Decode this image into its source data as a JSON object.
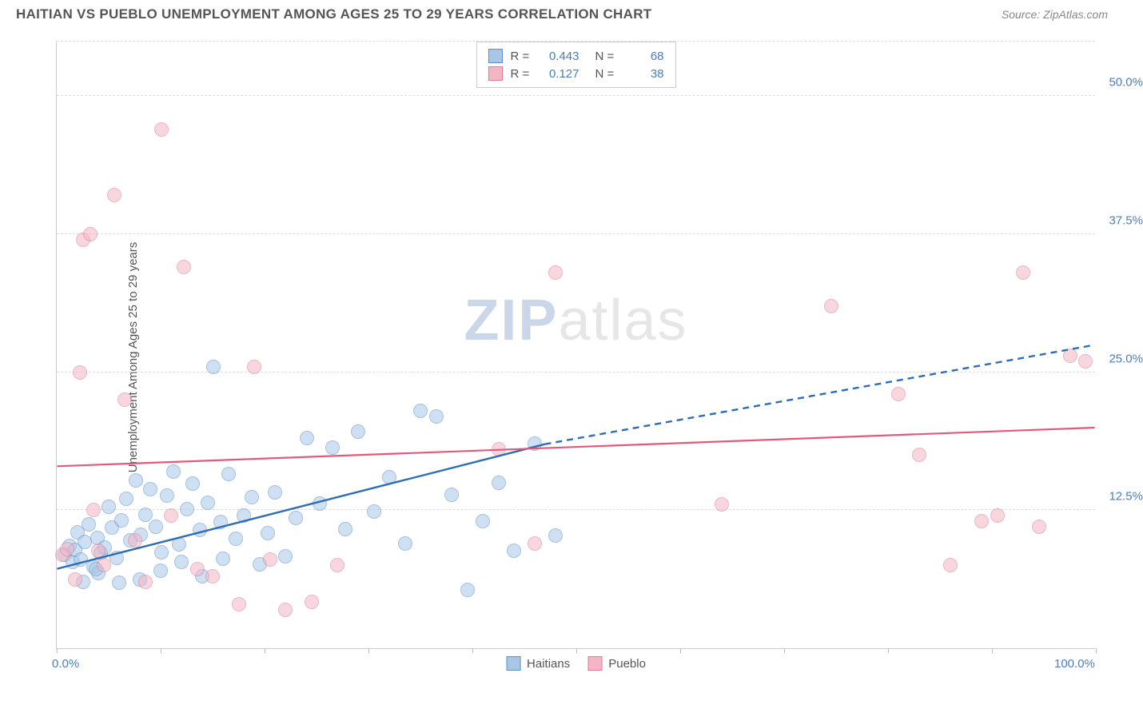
{
  "header": {
    "title": "HAITIAN VS PUEBLO UNEMPLOYMENT AMONG AGES 25 TO 29 YEARS CORRELATION CHART",
    "source": "Source: ZipAtlas.com"
  },
  "chart": {
    "type": "scatter",
    "ylabel": "Unemployment Among Ages 25 to 29 years",
    "watermark_a": "ZIP",
    "watermark_b": "atlas",
    "background_color": "#ffffff",
    "grid_color": "#dddddd",
    "axis_color": "#cccccc",
    "tick_label_color": "#4a7ebb",
    "xlim": [
      0,
      100
    ],
    "ylim": [
      0,
      55
    ],
    "x_ticks": [
      0,
      10,
      20,
      30,
      40,
      50,
      60,
      70,
      80,
      90,
      100
    ],
    "x_tick_labels": {
      "0": "0.0%",
      "100": "100.0%"
    },
    "y_gridlines": [
      12.5,
      25,
      37.5,
      50
    ],
    "y_tick_labels": {
      "12.5": "12.5%",
      "25": "25.0%",
      "37.5": "37.5%",
      "50": "50.0%"
    },
    "marker_radius": 9,
    "marker_opacity": 0.55,
    "series": [
      {
        "name": "Haitians",
        "color_fill": "#a8c7e8",
        "color_stroke": "#5a8fc7",
        "R": "0.443",
        "N": "68",
        "trend": {
          "color": "#2e6cb3",
          "width": 2.4,
          "x1": 0,
          "y1": 7.2,
          "x2": 47,
          "y2": 18.5,
          "x3": 100,
          "y3": 27.5,
          "dash_after": 47
        },
        "points": [
          [
            0.8,
            8.5
          ],
          [
            1.2,
            9.3
          ],
          [
            1.5,
            7.8
          ],
          [
            1.8,
            8.9
          ],
          [
            2.0,
            10.5
          ],
          [
            2.3,
            8.0
          ],
          [
            2.7,
            9.6
          ],
          [
            3.1,
            11.2
          ],
          [
            3.5,
            7.4
          ],
          [
            3.9,
            10.0
          ],
          [
            4.2,
            8.6
          ],
          [
            4.6,
            9.1
          ],
          [
            5.0,
            12.8
          ],
          [
            5.3,
            10.9
          ],
          [
            5.8,
            8.2
          ],
          [
            6.2,
            11.6
          ],
          [
            6.7,
            13.5
          ],
          [
            7.1,
            9.8
          ],
          [
            7.6,
            15.2
          ],
          [
            8.1,
            10.3
          ],
          [
            8.5,
            12.1
          ],
          [
            9.0,
            14.4
          ],
          [
            9.5,
            11.0
          ],
          [
            10.1,
            8.7
          ],
          [
            10.6,
            13.8
          ],
          [
            11.2,
            16.0
          ],
          [
            11.8,
            9.4
          ],
          [
            12.5,
            12.6
          ],
          [
            13.1,
            14.9
          ],
          [
            13.8,
            10.7
          ],
          [
            14.5,
            13.2
          ],
          [
            15.1,
            25.5
          ],
          [
            15.8,
            11.4
          ],
          [
            16.5,
            15.8
          ],
          [
            17.2,
            9.9
          ],
          [
            18.0,
            12.0
          ],
          [
            18.8,
            13.7
          ],
          [
            19.5,
            7.6
          ],
          [
            20.3,
            10.4
          ],
          [
            21.0,
            14.1
          ],
          [
            22.0,
            8.3
          ],
          [
            23.0,
            11.8
          ],
          [
            24.1,
            19.0
          ],
          [
            25.3,
            13.1
          ],
          [
            26.5,
            18.2
          ],
          [
            27.8,
            10.8
          ],
          [
            29.0,
            19.6
          ],
          [
            30.5,
            12.4
          ],
          [
            32.0,
            15.5
          ],
          [
            33.5,
            9.5
          ],
          [
            35.0,
            21.5
          ],
          [
            36.5,
            21.0
          ],
          [
            38.0,
            13.9
          ],
          [
            39.5,
            5.3
          ],
          [
            41.0,
            11.5
          ],
          [
            42.5,
            15.0
          ],
          [
            44.0,
            8.8
          ],
          [
            46.0,
            18.5
          ],
          [
            48.0,
            10.2
          ],
          [
            10.0,
            7.0
          ],
          [
            12.0,
            7.8
          ],
          [
            14.0,
            6.5
          ],
          [
            16.0,
            8.1
          ],
          [
            4.0,
            6.8
          ],
          [
            6.0,
            5.9
          ],
          [
            8.0,
            6.2
          ],
          [
            2.5,
            6.0
          ],
          [
            3.8,
            7.2
          ]
        ]
      },
      {
        "name": "Pueblo",
        "color_fill": "#f4b6c4",
        "color_stroke": "#e07a94",
        "R": "0.127",
        "N": "38",
        "trend": {
          "color": "#e05a7a",
          "width": 2.2,
          "x1": 0,
          "y1": 16.5,
          "x2": 100,
          "y2": 20.0
        },
        "points": [
          [
            0.5,
            8.5
          ],
          [
            1.0,
            9.0
          ],
          [
            2.2,
            25.0
          ],
          [
            2.5,
            37.0
          ],
          [
            3.2,
            37.5
          ],
          [
            3.5,
            12.5
          ],
          [
            4.0,
            8.8
          ],
          [
            4.5,
            7.5
          ],
          [
            5.5,
            41.0
          ],
          [
            6.5,
            22.5
          ],
          [
            7.5,
            9.8
          ],
          [
            8.5,
            6.0
          ],
          [
            10.1,
            47.0
          ],
          [
            11.0,
            12.0
          ],
          [
            12.2,
            34.5
          ],
          [
            13.5,
            7.2
          ],
          [
            15.0,
            6.5
          ],
          [
            17.5,
            4.0
          ],
          [
            19.0,
            25.5
          ],
          [
            20.5,
            8.0
          ],
          [
            22.0,
            3.5
          ],
          [
            24.5,
            4.2
          ],
          [
            27.0,
            7.5
          ],
          [
            42.5,
            18.0
          ],
          [
            46.0,
            9.5
          ],
          [
            48.0,
            34.0
          ],
          [
            64.0,
            13.0
          ],
          [
            74.5,
            31.0
          ],
          [
            81.0,
            23.0
          ],
          [
            83.0,
            17.5
          ],
          [
            86.0,
            7.5
          ],
          [
            89.0,
            11.5
          ],
          [
            90.5,
            12.0
          ],
          [
            93.0,
            34.0
          ],
          [
            94.5,
            11.0
          ],
          [
            97.5,
            26.5
          ],
          [
            99.0,
            26.0
          ],
          [
            1.8,
            6.2
          ]
        ]
      }
    ],
    "legend_bottom": [
      "Haitians",
      "Pueblo"
    ]
  }
}
